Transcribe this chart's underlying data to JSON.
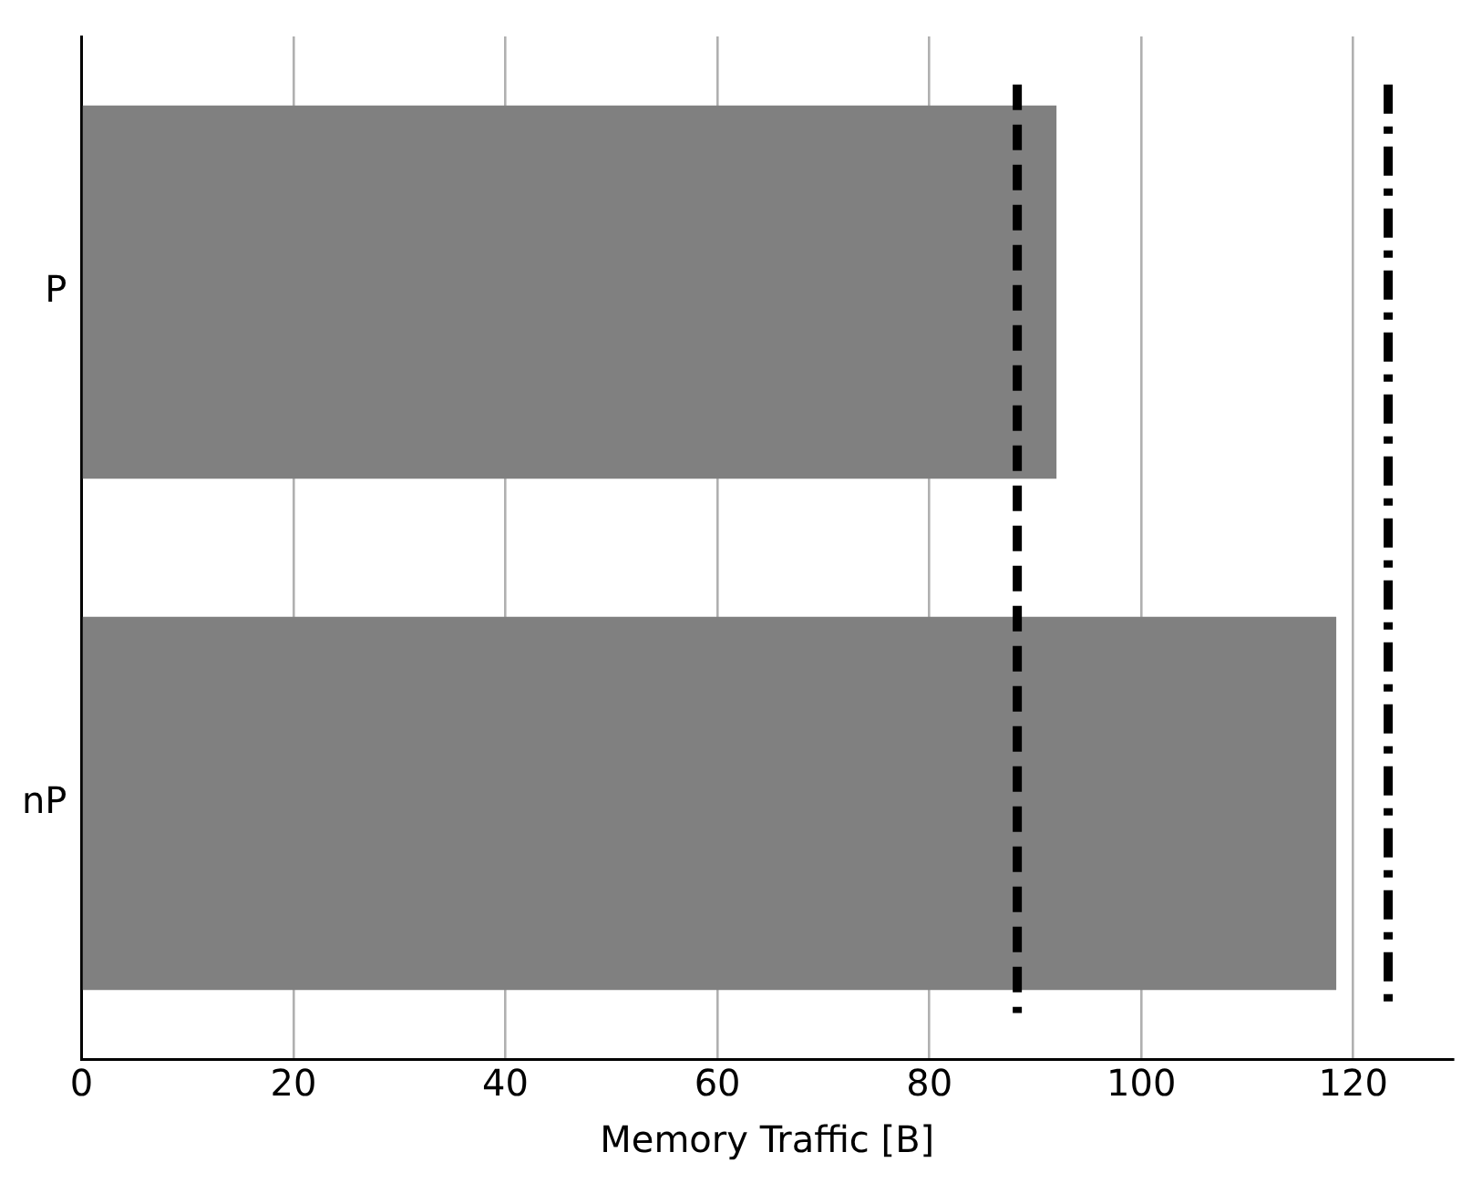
{
  "chart_data": {
    "type": "bar",
    "orientation": "horizontal",
    "categories": [
      "P",
      "nP"
    ],
    "values": [
      92,
      118.4
    ],
    "color": "#808080",
    "xlabel": "Memory Traffic [B]",
    "xlim": [
      0,
      129.4
    ],
    "xticks": [
      0,
      20,
      40,
      60,
      80,
      100,
      120
    ],
    "grid": "x",
    "legend": false,
    "ref_lines": [
      {
        "axis": "x",
        "value": 88.3,
        "color": "#000000",
        "line_style": "dashed"
      },
      {
        "axis": "x",
        "value": 123.3,
        "color": "#000000",
        "line_style": "dashdot"
      }
    ]
  }
}
